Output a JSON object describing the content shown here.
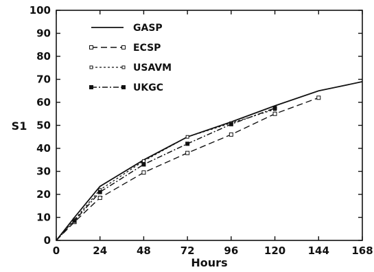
{
  "chart_data": {
    "type": "line",
    "title": "",
    "xlabel": "Hours",
    "ylabel": "S1",
    "xlim": [
      0,
      168
    ],
    "ylim": [
      0,
      100
    ],
    "x_ticks": [
      0,
      24,
      48,
      72,
      96,
      120,
      144,
      168
    ],
    "y_ticks": [
      0,
      10,
      20,
      30,
      40,
      50,
      60,
      70,
      80,
      90,
      100
    ],
    "grid": false,
    "legend": "top-left",
    "series": [
      {
        "name": "GASP",
        "style": "solid",
        "marker": "none",
        "x": [
          0,
          10,
          24,
          48,
          72,
          96,
          120,
          144,
          168
        ],
        "y": [
          0,
          10,
          23.5,
          35,
          45,
          51.5,
          58.5,
          65,
          69
        ]
      },
      {
        "name": "ECSP",
        "style": "long-dash",
        "marker": "open-square",
        "x": [
          0,
          10,
          24,
          48,
          72,
          96,
          120,
          144
        ],
        "y": [
          0,
          8,
          18.5,
          29.5,
          38,
          46,
          55,
          62
        ]
      },
      {
        "name": "USAVM",
        "style": "short-dash",
        "marker": "small-open-square",
        "x": [
          0,
          10,
          24,
          48,
          72,
          96,
          120
        ],
        "y": [
          0,
          9,
          22,
          34.5,
          45,
          51,
          57
        ]
      },
      {
        "name": "UKGC",
        "style": "dash-dot",
        "marker": "filled-square",
        "x": [
          0,
          10,
          24,
          48,
          72,
          96,
          120
        ],
        "y": [
          0,
          8.5,
          21,
          33,
          42,
          50.5,
          57.5
        ]
      }
    ]
  }
}
